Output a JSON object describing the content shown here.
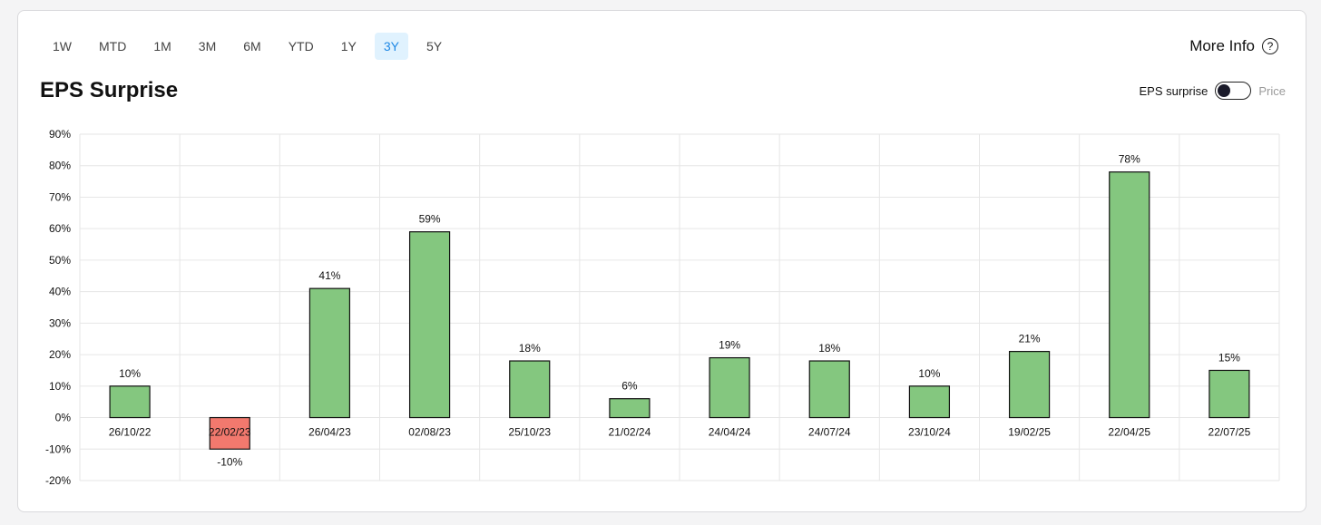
{
  "ranges": [
    "1W",
    "MTD",
    "1M",
    "3M",
    "6M",
    "YTD",
    "1Y",
    "3Y",
    "5Y"
  ],
  "active_range": "3Y",
  "more_info_label": "More Info",
  "more_info_icon": "question-circle-icon",
  "title": "EPS Surprise",
  "toggle": {
    "left_label": "EPS surprise",
    "right_label": "Price",
    "state": "EPS surprise"
  },
  "colors": {
    "positive": "#84c77f",
    "negative": "#f2796e",
    "active_bg": "#e0f2fe",
    "active_text": "#1e88e5"
  },
  "chart_data": {
    "type": "bar",
    "categories": [
      "26/10/22",
      "22/02/23",
      "26/04/23",
      "02/08/23",
      "25/10/23",
      "21/02/24",
      "24/04/24",
      "24/07/24",
      "23/10/24",
      "19/02/25",
      "22/04/25",
      "22/07/25"
    ],
    "values": [
      10,
      -10,
      41,
      59,
      18,
      6,
      19,
      18,
      10,
      21,
      78,
      15
    ],
    "value_labels": [
      "10%",
      "-10%",
      "41%",
      "59%",
      "18%",
      "6%",
      "19%",
      "18%",
      "10%",
      "21%",
      "78%",
      "15%"
    ],
    "ylim": [
      -20,
      90
    ],
    "yticks": [
      "-20%",
      "-10%",
      "0%",
      "10%",
      "20%",
      "30%",
      "40%",
      "50%",
      "60%",
      "70%",
      "80%",
      "90%"
    ],
    "grid": true
  }
}
